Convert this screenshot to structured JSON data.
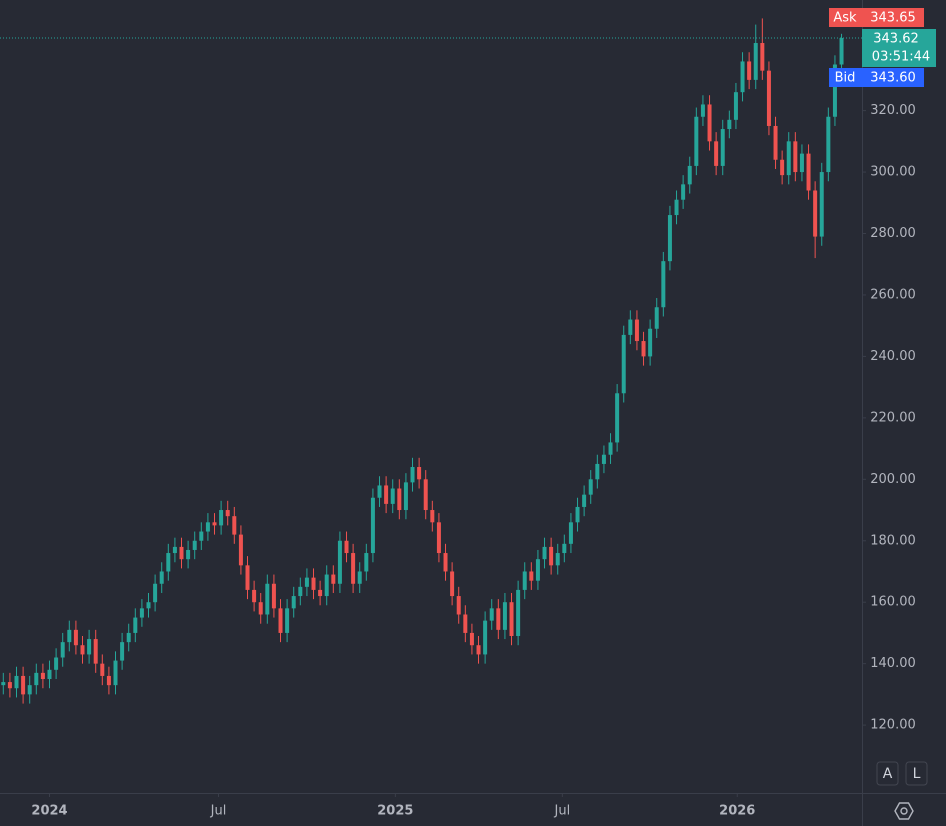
{
  "chart_data": {
    "type": "candlestick",
    "open": [
      133,
      134,
      132,
      136,
      130,
      133,
      137,
      135,
      138,
      142,
      147,
      151,
      146,
      143,
      148,
      140,
      136,
      133,
      141,
      147,
      150,
      155,
      158,
      160,
      166,
      170,
      176,
      178,
      174,
      177,
      180,
      183,
      186,
      185,
      190,
      188,
      182,
      172,
      164,
      160,
      156,
      166,
      158,
      150,
      158,
      162,
      165,
      168,
      164,
      162,
      169,
      166,
      180,
      176,
      166,
      170,
      176,
      194,
      198,
      192,
      197,
      190,
      199,
      204,
      200,
      190,
      186,
      176,
      170,
      162,
      156,
      150,
      146,
      143,
      154,
      158,
      151,
      160,
      149,
      164,
      170,
      167,
      174,
      178,
      172,
      176,
      179,
      186,
      191,
      195,
      200,
      205,
      208,
      212,
      228,
      247,
      252,
      245,
      240,
      249,
      256,
      271,
      286,
      291,
      296,
      302,
      318,
      322,
      310,
      302,
      314,
      317,
      326,
      336,
      330,
      342,
      333,
      315,
      304,
      299,
      310,
      300,
      306,
      294,
      279,
      300,
      318,
      335
    ],
    "high": [
      137,
      137,
      139,
      139,
      136,
      140,
      140,
      141,
      145,
      150,
      154,
      154,
      149,
      151,
      151,
      143,
      139,
      144,
      150,
      153,
      158,
      161,
      163,
      169,
      173,
      179,
      181,
      181,
      180,
      183,
      186,
      189,
      189,
      193,
      193,
      191,
      185,
      175,
      167,
      163,
      169,
      169,
      161,
      161,
      165,
      168,
      171,
      171,
      167,
      172,
      172,
      183,
      183,
      179,
      173,
      179,
      197,
      201,
      201,
      200,
      200,
      202,
      207,
      207,
      203,
      193,
      189,
      179,
      173,
      165,
      159,
      153,
      149,
      157,
      161,
      161,
      163,
      163,
      167,
      173,
      173,
      177,
      181,
      181,
      179,
      182,
      189,
      194,
      198,
      203,
      208,
      211,
      215,
      231,
      250,
      255,
      255,
      248,
      252,
      259,
      274,
      289,
      294,
      299,
      305,
      321,
      325,
      325,
      313,
      317,
      320,
      329,
      339,
      339,
      348,
      350,
      336,
      318,
      307,
      313,
      313,
      309,
      309,
      297,
      303,
      321,
      338,
      345
    ],
    "low": [
      130,
      129,
      129,
      127,
      127,
      130,
      132,
      132,
      135,
      139,
      144,
      143,
      140,
      140,
      137,
      133,
      130,
      130,
      138,
      144,
      147,
      152,
      155,
      157,
      163,
      167,
      173,
      171,
      171,
      174,
      177,
      180,
      182,
      182,
      185,
      179,
      169,
      161,
      157,
      153,
      153,
      155,
      147,
      147,
      155,
      159,
      162,
      161,
      159,
      159,
      163,
      163,
      173,
      163,
      163,
      167,
      173,
      191,
      189,
      189,
      187,
      187,
      196,
      197,
      187,
      183,
      173,
      167,
      159,
      153,
      147,
      143,
      140,
      140,
      151,
      148,
      148,
      146,
      146,
      161,
      164,
      164,
      171,
      169,
      169,
      173,
      176,
      183,
      188,
      192,
      197,
      202,
      205,
      209,
      225,
      244,
      242,
      237,
      237,
      246,
      253,
      268,
      283,
      288,
      293,
      299,
      315,
      307,
      299,
      299,
      311,
      314,
      323,
      327,
      327,
      330,
      312,
      301,
      296,
      296,
      297,
      297,
      291,
      272,
      276,
      297,
      315,
      332
    ],
    "close": [
      134,
      132,
      136,
      130,
      133,
      137,
      135,
      138,
      142,
      147,
      151,
      146,
      143,
      148,
      140,
      136,
      133,
      141,
      147,
      150,
      155,
      158,
      160,
      166,
      170,
      176,
      178,
      174,
      177,
      180,
      183,
      186,
      185,
      190,
      188,
      182,
      172,
      164,
      160,
      156,
      166,
      158,
      150,
      158,
      162,
      165,
      168,
      164,
      162,
      169,
      166,
      180,
      176,
      166,
      170,
      176,
      194,
      198,
      192,
      197,
      190,
      199,
      204,
      200,
      190,
      186,
      176,
      170,
      162,
      156,
      150,
      146,
      143,
      154,
      158,
      151,
      160,
      149,
      164,
      170,
      167,
      174,
      178,
      172,
      176,
      179,
      186,
      191,
      195,
      200,
      205,
      208,
      212,
      228,
      247,
      252,
      245,
      240,
      249,
      256,
      271,
      286,
      291,
      296,
      302,
      318,
      322,
      310,
      302,
      314,
      317,
      326,
      336,
      330,
      342,
      333,
      315,
      304,
      299,
      310,
      300,
      306,
      294,
      279,
      300,
      318,
      335,
      343.62
    ],
    "up_color": "#26a69a",
    "down_color": "#ef5350",
    "xlim": [
      -0.5,
      130.1
    ],
    "xticks": [
      {
        "value": 7,
        "label": "2024"
      },
      {
        "value": 32.6,
        "label": "Jul"
      },
      {
        "value": 59.4,
        "label": "2025"
      },
      {
        "value": 84.7,
        "label": "Jul"
      },
      {
        "value": 111.2,
        "label": "2026"
      }
    ],
    "ylim": [
      97.9,
      356.0
    ],
    "yticks": [
      {
        "value": 120,
        "label": "120.00"
      },
      {
        "value": 140,
        "label": "140.00"
      },
      {
        "value": 160,
        "label": "160.00"
      },
      {
        "value": 180,
        "label": "180.00"
      },
      {
        "value": 200,
        "label": "200.00"
      },
      {
        "value": 220,
        "label": "220.00"
      },
      {
        "value": 240,
        "label": "240.00"
      },
      {
        "value": 260,
        "label": "260.00"
      },
      {
        "value": 280,
        "label": "280.00"
      },
      {
        "value": 300,
        "label": "300.00"
      },
      {
        "value": 320,
        "label": "320.00"
      }
    ],
    "ask": {
      "label": "Ask",
      "value": 343.65
    },
    "last": {
      "value": 343.62,
      "countdown": "03:51:44"
    },
    "bid": {
      "label": "Bid",
      "value": 343.6,
      "value_label": "343.60"
    },
    "buttons": [
      "A",
      "L"
    ]
  }
}
